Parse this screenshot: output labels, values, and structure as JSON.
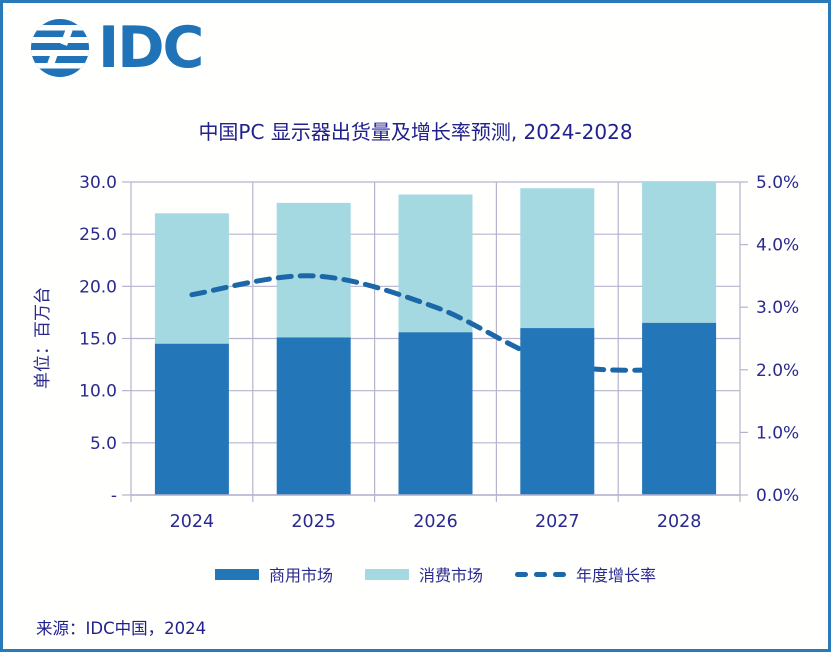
{
  "page": {
    "background": "#FFFFFE",
    "border_color": "#2A79B8"
  },
  "logo": {
    "text": "IDC",
    "color": "#2073B7",
    "icon": "striped-globe-icon"
  },
  "title": {
    "text": "中国PC 显示器出货量及增长率预测, 2024-2028",
    "color": "#21218E"
  },
  "source": {
    "text": "来源：IDC中国，2024"
  },
  "chart_data": {
    "type": "bar",
    "subtype": "stacked-bars-with-dashed-line",
    "title": "中国PC 显示器出货量及增长率预测, 2024-2028",
    "categories": [
      "2024",
      "2025",
      "2026",
      "2027",
      "2028"
    ],
    "series": [
      {
        "name": "商用市场",
        "type": "bar",
        "stack": "total",
        "color": "#2377B9",
        "values": [
          14.5,
          15.1,
          15.6,
          16.0,
          16.5
        ]
      },
      {
        "name": "消费市场",
        "type": "bar",
        "stack": "total",
        "color": "#A5D9E2",
        "values": [
          12.5,
          12.9,
          13.2,
          13.4,
          13.5
        ]
      },
      {
        "name": "年度增长率",
        "type": "line",
        "style": "dashed",
        "color": "#1C67A8",
        "axis": "right",
        "unit": "%",
        "values": [
          3.2,
          3.5,
          3.0,
          2.1,
          2.0
        ]
      }
    ],
    "stack_totals": [
      27.0,
      28.0,
      28.8,
      29.4,
      30.0
    ],
    "left_axis": {
      "label": "单位：百万台",
      "min": 0,
      "max": 30,
      "tick_values": [
        30,
        25,
        20,
        15,
        10,
        5,
        0
      ],
      "tick_labels": [
        "30.0",
        "25.0",
        "20.0",
        "15.0",
        "10.0",
        "5.0",
        "-"
      ]
    },
    "right_axis": {
      "min": 0,
      "max": 5,
      "tick_values": [
        5,
        4,
        3,
        2,
        1,
        0
      ],
      "tick_labels": [
        "5.0%",
        "4.0%",
        "3.0%",
        "2.0%",
        "1.0%",
        "0.0%"
      ]
    },
    "grid": {
      "horizontal": true,
      "vertical": true,
      "color": "#B7B2CE"
    },
    "text_color": "#2A2A8E",
    "legend_position": "bottom"
  },
  "legend": {
    "items": [
      {
        "label": "商用市场",
        "swatch": "bar",
        "color": "#2377B9"
      },
      {
        "label": "消费市场",
        "swatch": "bar",
        "color": "#A5D9E2"
      },
      {
        "label": "年度增长率",
        "swatch": "dashed-line",
        "color": "#1C67A8"
      }
    ]
  }
}
